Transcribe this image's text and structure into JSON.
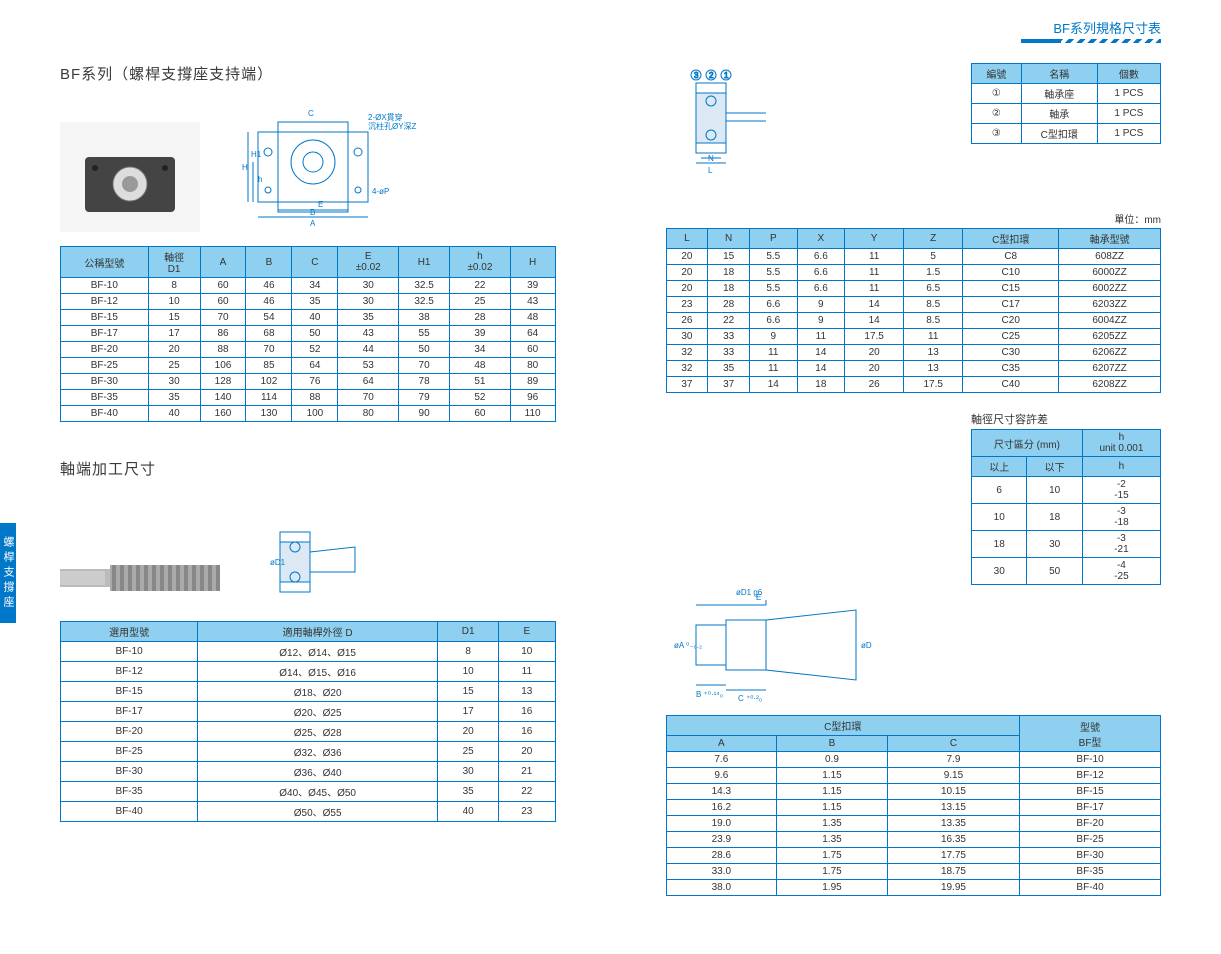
{
  "header_title": "BF系列規格尺寸表",
  "side_tab": "螺桿支撐座",
  "series": {
    "title": "BF系列（螺桿支撐座支持端）",
    "unit_label": "單位：mm",
    "parts_headers": [
      "編號",
      "名稱",
      "個數"
    ],
    "parts_rows": [
      [
        "①",
        "軸承座",
        "1 PCS"
      ],
      [
        "②",
        "軸承",
        "1 PCS"
      ],
      [
        "③",
        "C型扣環",
        "1 PCS"
      ]
    ],
    "dim_headers_left": [
      "公稱型號",
      "軸徑\nD1",
      "A",
      "B",
      "C",
      "E\n±0.02",
      "H1",
      "h\n±0.02",
      "H"
    ],
    "dim_rows_left": [
      [
        "BF-10",
        "8",
        "60",
        "46",
        "34",
        "30",
        "32.5",
        "22",
        "39"
      ],
      [
        "BF-12",
        "10",
        "60",
        "46",
        "35",
        "30",
        "32.5",
        "25",
        "43"
      ],
      [
        "BF-15",
        "15",
        "70",
        "54",
        "40",
        "35",
        "38",
        "28",
        "48"
      ],
      [
        "BF-17",
        "17",
        "86",
        "68",
        "50",
        "43",
        "55",
        "39",
        "64"
      ],
      [
        "BF-20",
        "20",
        "88",
        "70",
        "52",
        "44",
        "50",
        "34",
        "60"
      ],
      [
        "BF-25",
        "25",
        "106",
        "85",
        "64",
        "53",
        "70",
        "48",
        "80"
      ],
      [
        "BF-30",
        "30",
        "128",
        "102",
        "76",
        "64",
        "78",
        "51",
        "89"
      ],
      [
        "BF-35",
        "35",
        "140",
        "114",
        "88",
        "70",
        "79",
        "52",
        "96"
      ],
      [
        "BF-40",
        "40",
        "160",
        "130",
        "100",
        "80",
        "90",
        "60",
        "110"
      ]
    ],
    "dim_headers_right": [
      "L",
      "N",
      "P",
      "X",
      "Y",
      "Z",
      "C型扣環",
      "軸承型號"
    ],
    "dim_rows_right": [
      [
        "20",
        "15",
        "5.5",
        "6.6",
        "11",
        "5",
        "C8",
        "608ZZ"
      ],
      [
        "20",
        "18",
        "5.5",
        "6.6",
        "11",
        "1.5",
        "C10",
        "6000ZZ"
      ],
      [
        "20",
        "18",
        "5.5",
        "6.6",
        "11",
        "6.5",
        "C15",
        "6002ZZ"
      ],
      [
        "23",
        "28",
        "6.6",
        "9",
        "14",
        "8.5",
        "C17",
        "6203ZZ"
      ],
      [
        "26",
        "22",
        "6.6",
        "9",
        "14",
        "8.5",
        "C20",
        "6004ZZ"
      ],
      [
        "30",
        "33",
        "9",
        "11",
        "17.5",
        "11",
        "C25",
        "6205ZZ"
      ],
      [
        "32",
        "33",
        "11",
        "14",
        "20",
        "13",
        "C30",
        "6206ZZ"
      ],
      [
        "32",
        "35",
        "11",
        "14",
        "20",
        "13",
        "C35",
        "6207ZZ"
      ],
      [
        "37",
        "37",
        "14",
        "18",
        "26",
        "17.5",
        "C40",
        "6208ZZ"
      ]
    ]
  },
  "shaft": {
    "title": "軸端加工尺寸",
    "tolerance_title": "軸徑尺寸容許差",
    "tol_headers": [
      "尺寸區分 (mm)",
      "h\nunit 0.001"
    ],
    "tol_sub": [
      "以上",
      "以下",
      "h"
    ],
    "tol_rows": [
      [
        "6",
        "10",
        "-2\n-15"
      ],
      [
        "10",
        "18",
        "-3\n-18"
      ],
      [
        "18",
        "30",
        "-3\n-21"
      ],
      [
        "30",
        "50",
        "-4\n-25"
      ]
    ],
    "left_headers": [
      "選用型號",
      "適用軸桿外徑 D",
      "D1",
      "E"
    ],
    "left_rows": [
      [
        "BF-10",
        "Ø12、Ø14、Ø15",
        "8",
        "10"
      ],
      [
        "BF-12",
        "Ø14、Ø15、Ø16",
        "10",
        "11"
      ],
      [
        "BF-15",
        "Ø18、Ø20",
        "15",
        "13"
      ],
      [
        "BF-17",
        "Ø20、Ø25",
        "17",
        "16"
      ],
      [
        "BF-20",
        "Ø25、Ø28",
        "20",
        "16"
      ],
      [
        "BF-25",
        "Ø32、Ø36",
        "25",
        "20"
      ],
      [
        "BF-30",
        "Ø36、Ø40",
        "30",
        "21"
      ],
      [
        "BF-35",
        "Ø40、Ø45、Ø50",
        "35",
        "22"
      ],
      [
        "BF-40",
        "Ø50、Ø55",
        "40",
        "23"
      ]
    ],
    "right_headers_top": [
      "C型扣環",
      "型號\nBF型"
    ],
    "right_headers_sub": [
      "A",
      "B",
      "C"
    ],
    "right_rows": [
      [
        "7.6",
        "0.9",
        "7.9",
        "BF-10"
      ],
      [
        "9.6",
        "1.15",
        "9.15",
        "BF-12"
      ],
      [
        "14.3",
        "1.15",
        "10.15",
        "BF-15"
      ],
      [
        "16.2",
        "1.15",
        "13.15",
        "BF-17"
      ],
      [
        "19.0",
        "1.35",
        "13.35",
        "BF-20"
      ],
      [
        "23.9",
        "1.35",
        "16.35",
        "BF-25"
      ],
      [
        "28.6",
        "1.75",
        "17.75",
        "BF-30"
      ],
      [
        "33.0",
        "1.75",
        "18.75",
        "BF-35"
      ],
      [
        "38.0",
        "1.95",
        "19.95",
        "BF-40"
      ]
    ]
  },
  "diagram_labels": {
    "d1": "2-ØX貫穿\n沉柱孔ØY深Z",
    "d2": "4-øP",
    "d3": "øD1 g6",
    "d4": "øA 0\n-0.2",
    "d5": "øD",
    "d6": "B +0.14\n   0",
    "d7": "C +0.2\n   0",
    "d8": "E",
    "letters": [
      "H",
      "H1",
      "h",
      "C",
      "B",
      "A",
      "E",
      "L",
      "N"
    ]
  },
  "colors": {
    "header_bg": "#8fd0f0",
    "border": "#0077c8",
    "text": "#333333",
    "accent": "#0077c8"
  }
}
